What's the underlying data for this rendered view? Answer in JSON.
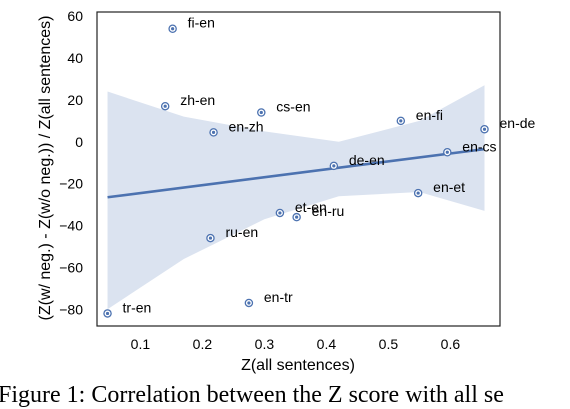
{
  "chart_data": {
    "type": "scatter",
    "title": "",
    "xlabel": "Z(all sentences)",
    "ylabel": "(Z(w/ neg.) - Z(w/o neg.)) / Z(all sentences)",
    "xlim": [
      0.03,
      0.68
    ],
    "ylim": [
      -88,
      62
    ],
    "xticks": [
      "0.1",
      "0.2",
      "0.3",
      "0.4",
      "0.5",
      "0.6"
    ],
    "xtick_values": [
      0.1,
      0.2,
      0.3,
      0.4,
      0.5,
      0.6
    ],
    "yticks": [
      "60",
      "40",
      "20",
      "0",
      "−20",
      "−40",
      "−60",
      "−80"
    ],
    "ytick_values": [
      60,
      40,
      20,
      0,
      -20,
      -40,
      -60,
      -80
    ],
    "grid": false,
    "points": [
      {
        "label": "fi-en",
        "x": 0.152,
        "y": 54
      },
      {
        "label": "zh-en",
        "x": 0.14,
        "y": 17
      },
      {
        "label": "cs-en",
        "x": 0.295,
        "y": 14
      },
      {
        "label": "en-zh",
        "x": 0.218,
        "y": 4.5
      },
      {
        "label": "en-fi",
        "x": 0.52,
        "y": 10
      },
      {
        "label": "en-de",
        "x": 0.655,
        "y": 6
      },
      {
        "label": "en-cs",
        "x": 0.595,
        "y": -5
      },
      {
        "label": "de-en",
        "x": 0.412,
        "y": -11.5
      },
      {
        "label": "en-et",
        "x": 0.548,
        "y": -24.5
      },
      {
        "label": "et-en",
        "x": 0.325,
        "y": -34
      },
      {
        "label": "en-ru",
        "x": 0.352,
        "y": -36
      },
      {
        "label": "ru-en",
        "x": 0.213,
        "y": -46
      },
      {
        "label": "en-tr",
        "x": 0.275,
        "y": -77
      },
      {
        "label": "tr-en",
        "x": 0.047,
        "y": -82
      }
    ],
    "regression": {
      "x": [
        0.047,
        0.655
      ],
      "y": [
        -26.5,
        -3.5
      ]
    },
    "confidence_band": {
      "x": [
        0.047,
        0.17,
        0.3,
        0.42,
        0.55,
        0.655
      ],
      "upper": [
        24,
        12,
        5,
        0,
        10,
        27
      ],
      "lower": [
        -80,
        -56,
        -37,
        -26,
        -24,
        -33
      ]
    },
    "colors": {
      "point": "#4c72b0",
      "line": "#4c72b0",
      "band": "#dbe3f0"
    }
  },
  "caption": "Figure 1: Correlation between the Z score with all se"
}
